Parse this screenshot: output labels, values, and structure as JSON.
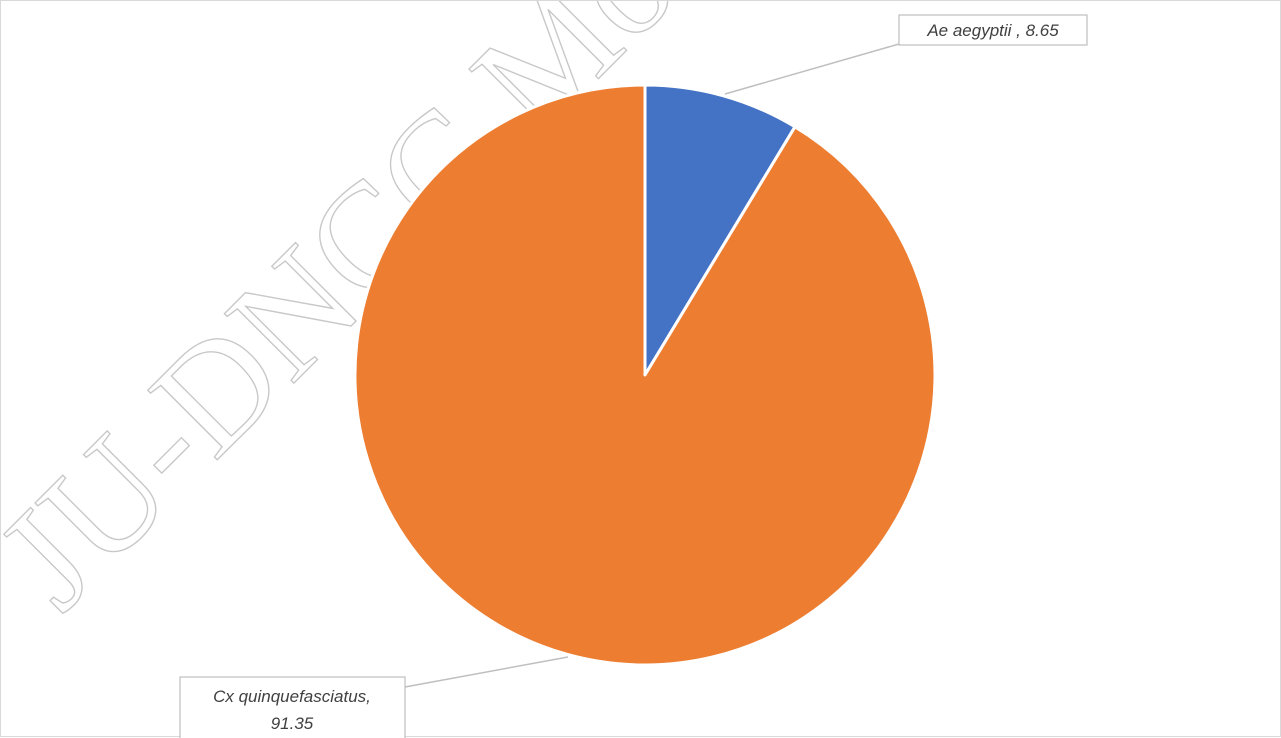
{
  "watermark": "JU-DNCC Mosquitoes",
  "chart_data": {
    "type": "pie",
    "title": "",
    "start_angle_deg": 0,
    "direction": "clockwise",
    "slices": [
      {
        "name": "Ae aegyptii",
        "value": 8.65,
        "label_line1": "Ae aegyptii , 8.65",
        "label_line2": "",
        "color": "#4472c4"
      },
      {
        "name": "Cx quinquefasciatus",
        "value": 91.35,
        "label_line1": "Cx quinquefasciatus,",
        "label_line2": "91.35",
        "color": "#ed7d31"
      }
    ],
    "slice_border_color": "#ffffff",
    "leader_line_color": "#bfbfbf",
    "label_box_border_color": "#bfbfbf"
  }
}
